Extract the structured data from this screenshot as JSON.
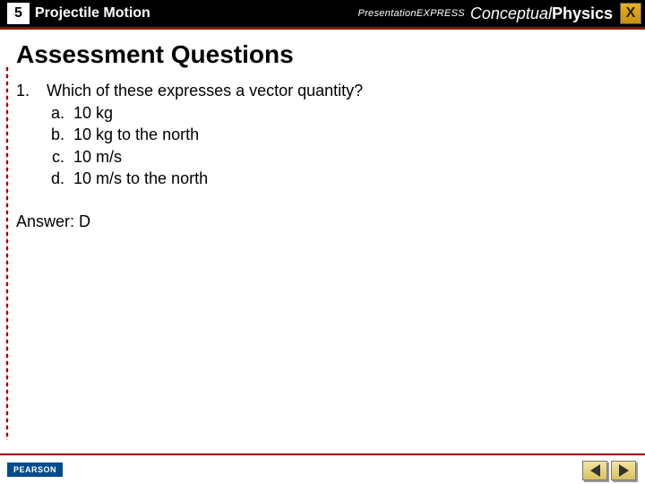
{
  "header": {
    "chapter_number": "5",
    "chapter_title": "Projectile Motion",
    "brand_presentation": "PresentationEXPRESS",
    "brand_book_italic": "Conceptual",
    "brand_book_bold": "Physics",
    "close_label": "X"
  },
  "content": {
    "section_heading": "Assessment Questions",
    "question": {
      "number": "1.",
      "text": "Which of these expresses a vector quantity?",
      "options": [
        {
          "letter": "a.",
          "text": "10 kg"
        },
        {
          "letter": "b.",
          "text": "10 kg to the north"
        },
        {
          "letter": "c.",
          "text": "10 m/s"
        },
        {
          "letter": "d.",
          "text": "10 m/s to the north"
        }
      ]
    },
    "answer_label": "Answer: D"
  },
  "footer": {
    "publisher": "PEARSON"
  },
  "colors": {
    "accent_red": "#a00000",
    "pearson_blue": "#004b8d",
    "close_gold": "#e8b020"
  }
}
